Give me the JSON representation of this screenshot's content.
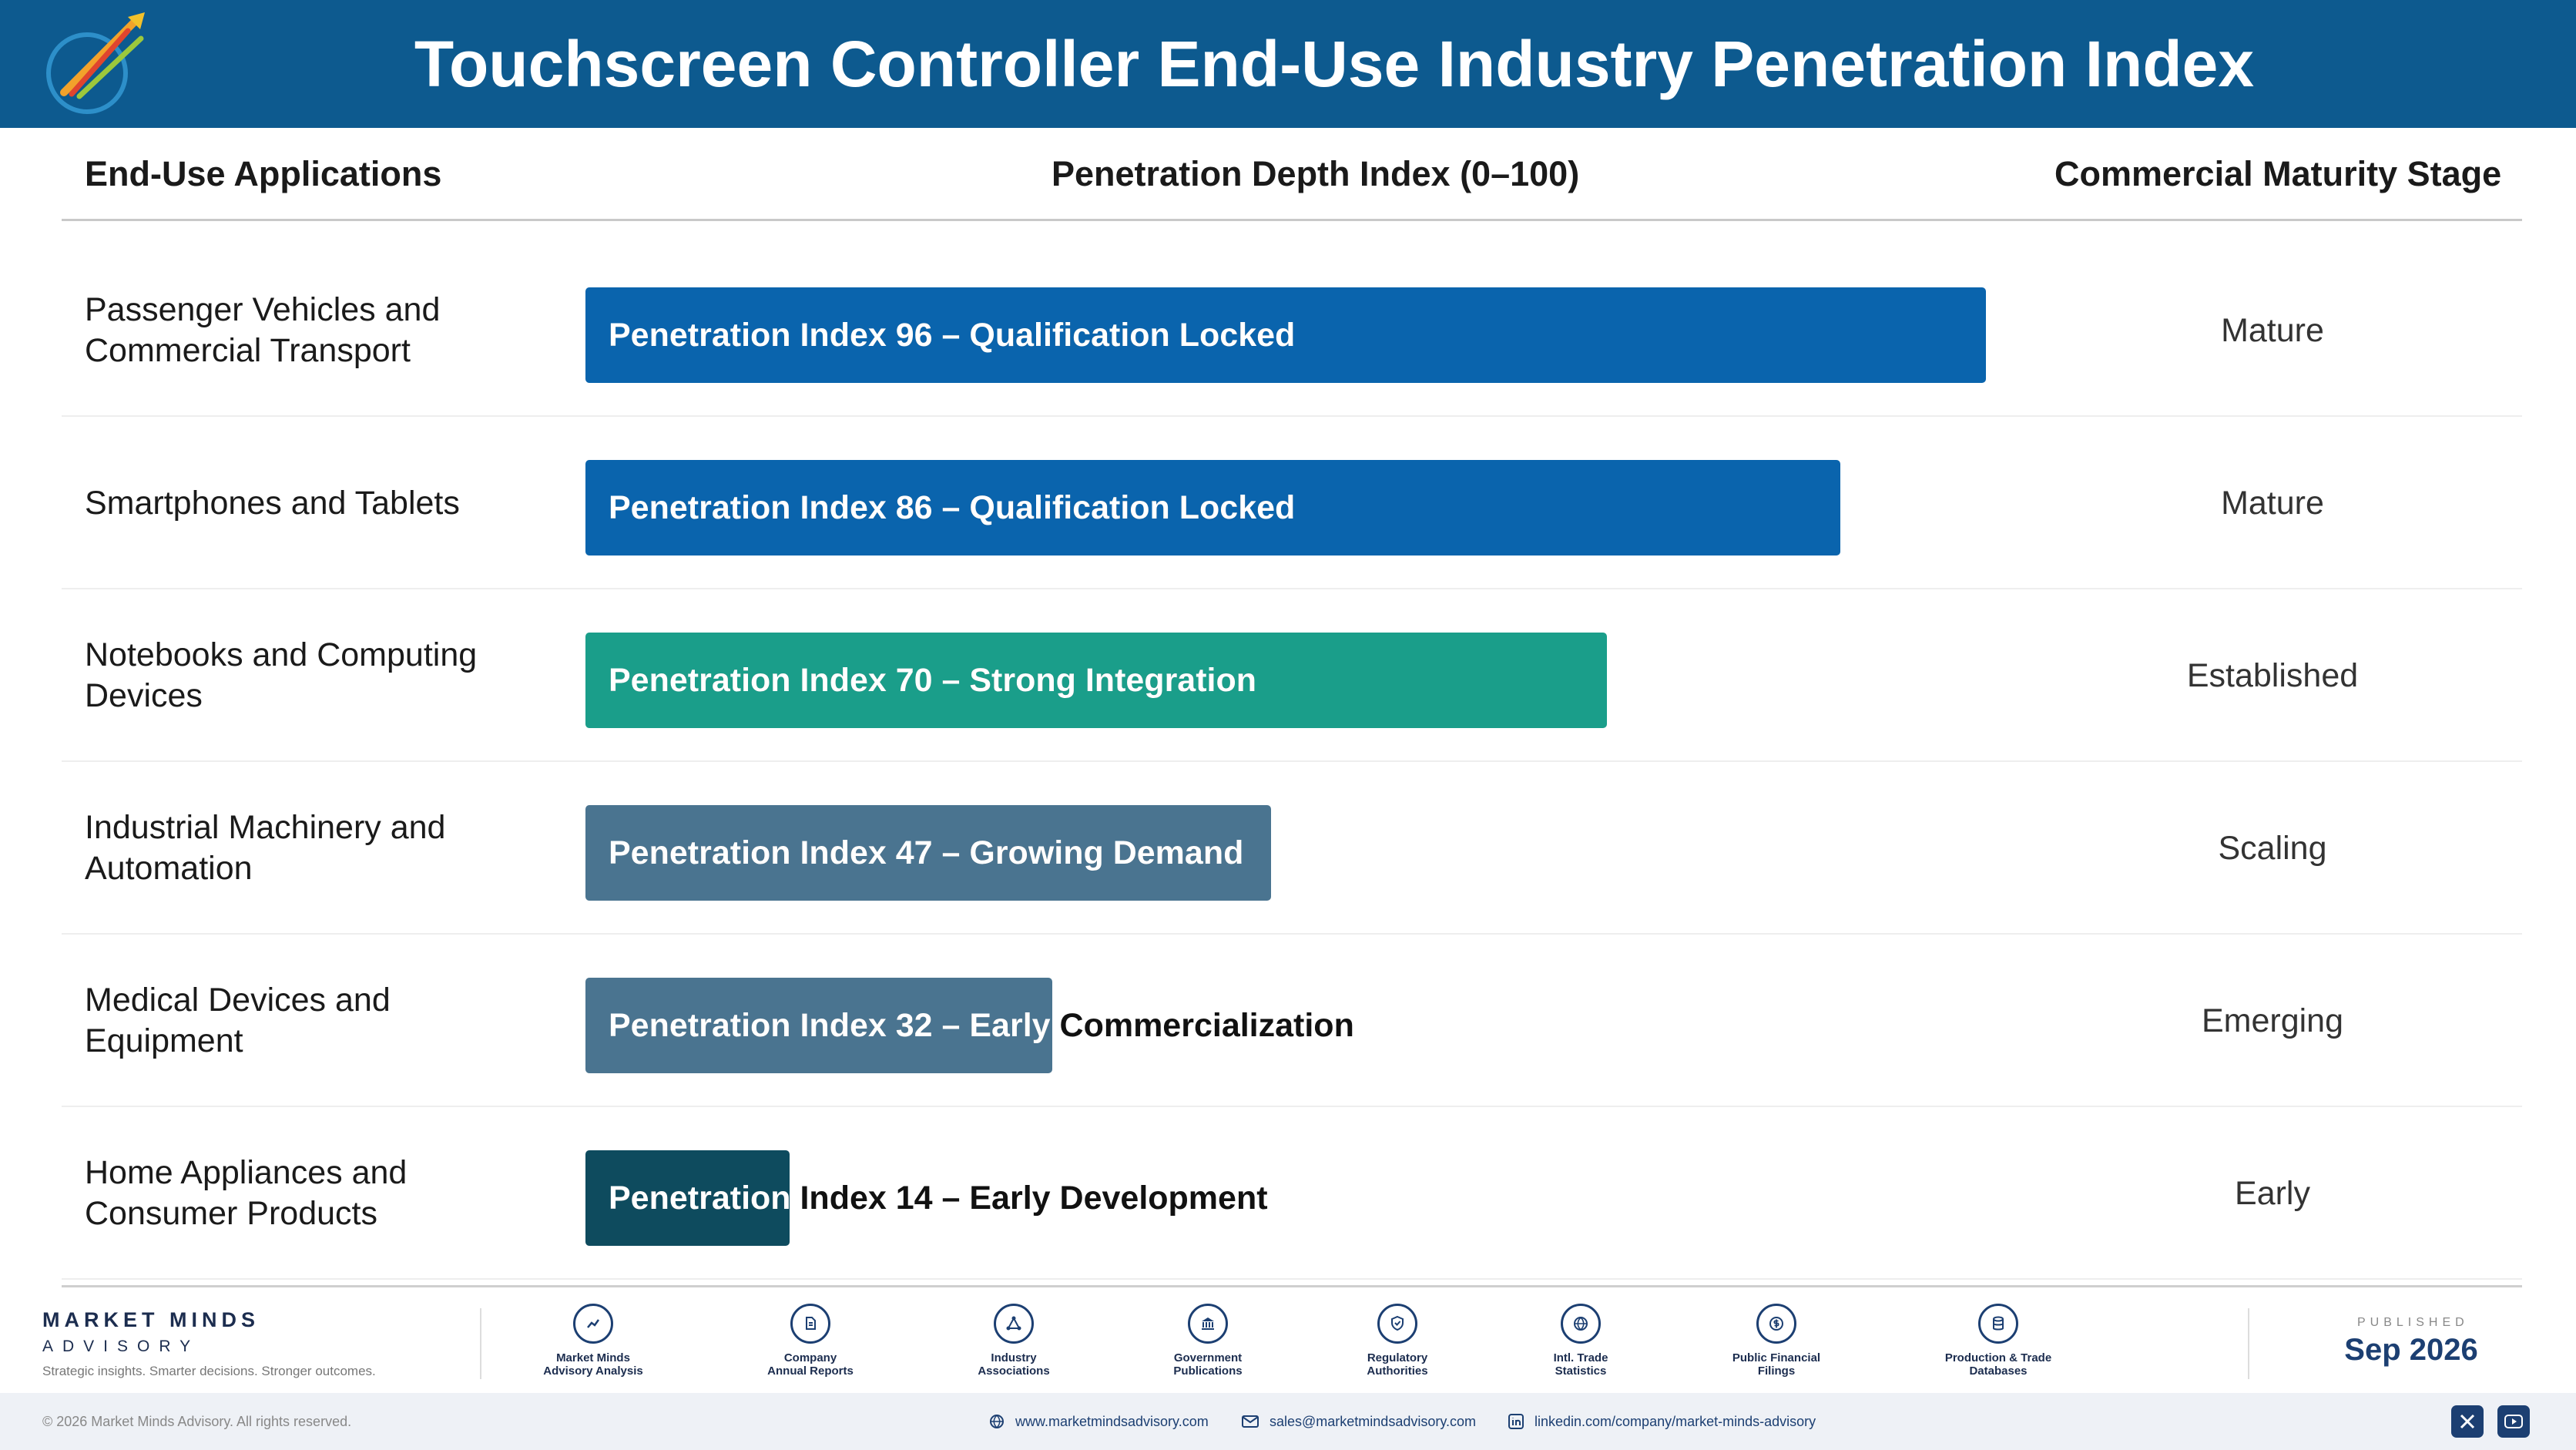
{
  "header": {
    "title": "Touchscreen Controller End-Use Industry Penetration Index"
  },
  "columns": {
    "applications": "End-Use Applications",
    "index": "Penetration Depth Index (0–100)",
    "stage": "Commercial Maturity Stage"
  },
  "colors": {
    "header_bg": "#0d5a8f",
    "qualification_locked": "#0a64ad",
    "strong_integration": "#1a9e8a",
    "growing_demand": "#4a7490",
    "early_commercialization": "#4a7490",
    "early_development": "#0e4b5e"
  },
  "chart_data": {
    "type": "bar",
    "orientation": "horizontal",
    "xlim": [
      0,
      100
    ],
    "categories": [
      "Passenger Vehicles and Commercial Transport",
      "Smartphones and Tablets",
      "Notebooks and Computing Devices",
      "Industrial Machinery and Automation",
      "Medical Devices and Equipment",
      "Home Appliances and Consumer Products"
    ],
    "values": [
      96,
      86,
      70,
      47,
      32,
      14
    ],
    "bar_labels": [
      "Penetration Index 96 – Qualification Locked",
      "Penetration Index 86 – Qualification Locked",
      "Penetration Index 70 – Strong Integration",
      "Penetration Index 47 – Growing Demand",
      "Penetration Index 32 – Early Commercialization",
      "Penetration Index 14 – Early Development"
    ],
    "bar_colors": [
      "#0a64ad",
      "#0a64ad",
      "#1a9e8a",
      "#4a7490",
      "#4a7490",
      "#0e4b5e"
    ],
    "stages": [
      "Mature",
      "Mature",
      "Established",
      "Scaling",
      "Emerging",
      "Early"
    ]
  },
  "footer": {
    "brand_name": "MARKET MINDS",
    "brand_sub": "ADVISORY",
    "tagline": "Strategic insights. Smarter decisions. Stronger outcomes.",
    "sources": [
      {
        "l1": "Market Minds",
        "l2": "Advisory Analysis",
        "icon": "chart-line-icon"
      },
      {
        "l1": "Company",
        "l2": "Annual Reports",
        "icon": "document-icon"
      },
      {
        "l1": "Industry",
        "l2": "Associations",
        "icon": "network-icon"
      },
      {
        "l1": "Government",
        "l2": "Publications",
        "icon": "building-icon"
      },
      {
        "l1": "Regulatory",
        "l2": "Authorities",
        "icon": "shield-icon"
      },
      {
        "l1": "Intl. Trade",
        "l2": "Statistics",
        "icon": "globe-icon"
      },
      {
        "l1": "Public Financial",
        "l2": "Filings",
        "icon": "coin-icon"
      },
      {
        "l1": "Production & Trade",
        "l2": "Databases",
        "icon": "database-icon"
      }
    ],
    "published_label": "PUBLISHED",
    "published_date": "Sep 2026",
    "copyright": "© 2026 Market Minds Advisory. All rights reserved.",
    "website": "www.marketmindsadvisory.com",
    "email": "sales@marketmindsadvisory.com",
    "linkedin": "linkedin.com/company/market-minds-advisory"
  }
}
